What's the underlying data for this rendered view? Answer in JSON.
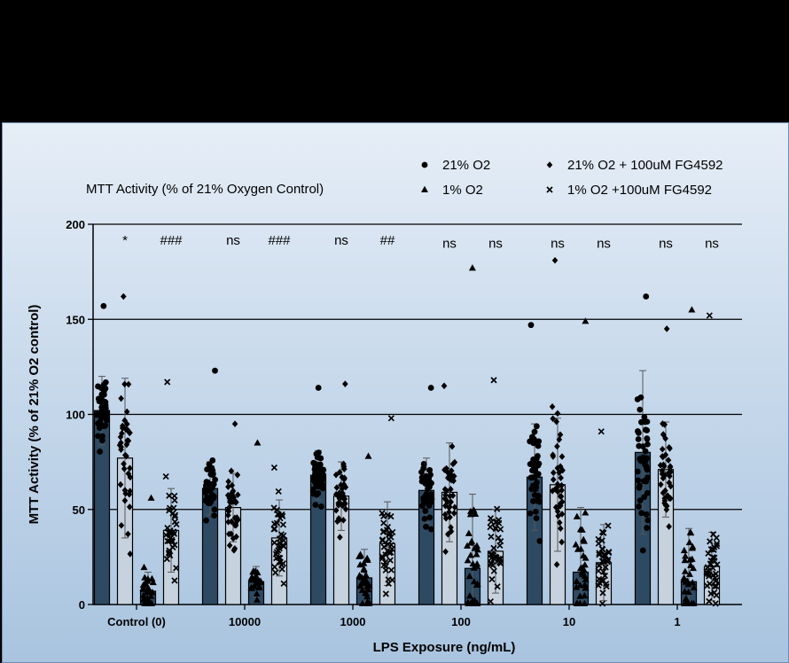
{
  "chart_data": {
    "type": "bar",
    "title": "MTT  Activity (% of 21% Oxygen Control)",
    "xlabel": "LPS Exposure (ng/mL)",
    "ylabel": "MTT Activity (% of 21% O2 control)",
    "ylim": [
      0,
      200
    ],
    "yticks": [
      0,
      50,
      100,
      150,
      200
    ],
    "grid": true,
    "legend_position": "top-right",
    "categories": [
      "Control (0)",
      "10000",
      "1000",
      "100",
      "10",
      "1"
    ],
    "series": [
      {
        "name": "21% O2",
        "marker": "circle",
        "bar_color": "#2e4a63",
        "values": [
          102,
          61,
          68,
          60,
          67,
          80
        ],
        "sd": [
          18,
          14,
          13,
          17,
          28,
          43
        ],
        "max": [
          157,
          123,
          114,
          114,
          147,
          162
        ]
      },
      {
        "name": "21% O2 + 100uM FG4592",
        "marker": "diamond",
        "bar_color": "#c6d2de",
        "values": [
          77,
          51,
          57,
          59,
          63,
          71
        ],
        "sd": [
          42,
          18,
          18,
          26,
          35,
          25
        ],
        "max": [
          162,
          95,
          116,
          115,
          181,
          145
        ]
      },
      {
        "name": "1% O2",
        "marker": "triangle",
        "bar_color": "#2e4a63",
        "values": [
          7,
          12,
          14,
          19,
          17,
          12
        ],
        "sd": [
          10,
          8,
          15,
          39,
          34,
          28
        ],
        "max": [
          56,
          85,
          78,
          177,
          149,
          155
        ]
      },
      {
        "name": "1% O2 +100uM FG4592",
        "marker": "cross",
        "bar_color": "#c6d2de",
        "values": [
          39,
          35,
          32,
          28,
          22,
          20
        ],
        "sd": [
          22,
          20,
          22,
          22,
          20,
          18
        ],
        "max": [
          117,
          72,
          98,
          118,
          91,
          152
        ]
      }
    ],
    "annotations": [
      {
        "category": "Control (0)",
        "series": "21% O2 + 100uM FG4592",
        "text": "*"
      },
      {
        "category": "Control (0)",
        "series": "1% O2 +100uM FG4592",
        "text": "###"
      },
      {
        "category": "10000",
        "series": "21% O2 + 100uM FG4592",
        "text": "ns"
      },
      {
        "category": "10000",
        "series": "1% O2 +100uM FG4592",
        "text": "###"
      },
      {
        "category": "1000",
        "series": "21% O2 + 100uM FG4592",
        "text": "ns"
      },
      {
        "category": "1000",
        "series": "1% O2 +100uM FG4592",
        "text": "##"
      },
      {
        "category": "100",
        "series": "21% O2 + 100uM FG4592",
        "text": "ns"
      },
      {
        "category": "100",
        "series": "1% O2 +100uM FG4592",
        "text": "ns"
      },
      {
        "category": "10",
        "series": "21% O2 + 100uM FG4592",
        "text": "ns"
      },
      {
        "category": "10",
        "series": "1% O2 +100uM FG4592",
        "text": "ns"
      },
      {
        "category": "1",
        "series": "21% O2 + 100uM FG4592",
        "text": "ns"
      },
      {
        "category": "1",
        "series": "1% O2 +100uM FG4592",
        "text": "ns"
      }
    ]
  }
}
